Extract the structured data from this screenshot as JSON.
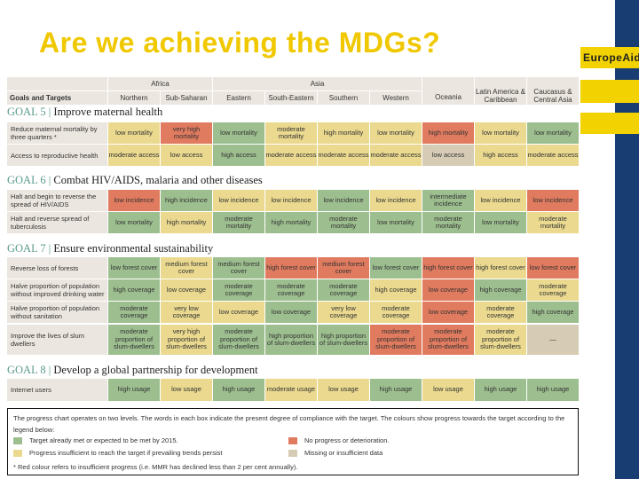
{
  "title": "Are we achieving the MDGs?",
  "brand": "EuropeAid",
  "colors": {
    "green": "#9dbf8f",
    "yellow": "#ead98f",
    "red": "#e07b5f",
    "gray": "#d6ccb5"
  },
  "header": {
    "goals_label": "Goals and Targets",
    "groups": [
      {
        "label": "Africa",
        "span": 2
      },
      {
        "label": "Asia",
        "span": 4
      }
    ],
    "regions": [
      "Northern",
      "Sub-Saharan",
      "Eastern",
      "South-Eastern",
      "Southern",
      "Western",
      "Oceania",
      "Latin America & Caribbean",
      "Caucasus & Central Asia"
    ]
  },
  "goals": [
    {
      "number": "GOAL 5",
      "title": "Improve maternal health",
      "rows": [
        {
          "label": "Reduce maternal mortality by three quarters *",
          "cells": [
            [
              "low mortality",
              "yellow"
            ],
            [
              "very high mortality",
              "red"
            ],
            [
              "low mortality",
              "green"
            ],
            [
              "moderate mortality",
              "yellow"
            ],
            [
              "high mortality",
              "yellow"
            ],
            [
              "low mortality",
              "yellow"
            ],
            [
              "high mortality",
              "red"
            ],
            [
              "low mortality",
              "yellow"
            ],
            [
              "low mortality",
              "green"
            ]
          ]
        },
        {
          "label": "Access to reproductive health",
          "cells": [
            [
              "moderate access",
              "yellow"
            ],
            [
              "low access",
              "yellow"
            ],
            [
              "high access",
              "green"
            ],
            [
              "moderate access",
              "yellow"
            ],
            [
              "moderate access",
              "yellow"
            ],
            [
              "moderate access",
              "yellow"
            ],
            [
              "low access",
              "gray"
            ],
            [
              "high access",
              "yellow"
            ],
            [
              "moderate access",
              "yellow"
            ]
          ]
        }
      ]
    },
    {
      "number": "GOAL 6",
      "title": "Combat HIV/AIDS, malaria and other diseases",
      "rows": [
        {
          "label": "Halt and begin to reverse the spread of HIV/AIDS",
          "cells": [
            [
              "low incidence",
              "red"
            ],
            [
              "high incidence",
              "green"
            ],
            [
              "low incidence",
              "yellow"
            ],
            [
              "low incidence",
              "yellow"
            ],
            [
              "low incidence",
              "green"
            ],
            [
              "low incidence",
              "yellow"
            ],
            [
              "intermediate incidence",
              "green"
            ],
            [
              "low incidence",
              "yellow"
            ],
            [
              "low incidence",
              "red"
            ]
          ]
        },
        {
          "label": "Halt and reverse spread of tuberculosis",
          "cells": [
            [
              "low mortality",
              "green"
            ],
            [
              "high mortality",
              "yellow"
            ],
            [
              "moderate mortality",
              "green"
            ],
            [
              "high mortality",
              "green"
            ],
            [
              "moderate mortality",
              "green"
            ],
            [
              "low mortality",
              "green"
            ],
            [
              "moderate mortality",
              "green"
            ],
            [
              "low mortality",
              "green"
            ],
            [
              "moderate mortality",
              "yellow"
            ]
          ]
        }
      ]
    },
    {
      "number": "GOAL 7",
      "title": "Ensure environmental sustainability",
      "rows": [
        {
          "label": "Reverse loss of forests",
          "cells": [
            [
              "low forest cover",
              "green"
            ],
            [
              "medium forest cover",
              "yellow"
            ],
            [
              "medium forest cover",
              "green"
            ],
            [
              "high forest cover",
              "red"
            ],
            [
              "medium forest cover",
              "red"
            ],
            [
              "low forest cover",
              "green"
            ],
            [
              "high forest cover",
              "red"
            ],
            [
              "high forest cover",
              "yellow"
            ],
            [
              "low forest cover",
              "red"
            ]
          ]
        },
        {
          "label": "Halve proportion of population without improved drinking water",
          "cells": [
            [
              "high coverage",
              "green"
            ],
            [
              "low coverage",
              "yellow"
            ],
            [
              "moderate coverage",
              "green"
            ],
            [
              "moderate coverage",
              "green"
            ],
            [
              "moderate coverage",
              "green"
            ],
            [
              "high coverage",
              "yellow"
            ],
            [
              "low coverage",
              "red"
            ],
            [
              "high coverage",
              "green"
            ],
            [
              "moderate coverage",
              "yellow"
            ]
          ]
        },
        {
          "label": "Halve proportion of population without sanitation",
          "cells": [
            [
              "moderate coverage",
              "green"
            ],
            [
              "very low coverage",
              "yellow"
            ],
            [
              "low coverage",
              "yellow"
            ],
            [
              "low coverage",
              "green"
            ],
            [
              "very low coverage",
              "yellow"
            ],
            [
              "moderate coverage",
              "yellow"
            ],
            [
              "low coverage",
              "red"
            ],
            [
              "moderate coverage",
              "yellow"
            ],
            [
              "high coverage",
              "green"
            ]
          ]
        },
        {
          "label": "Improve the lives of slum dwellers",
          "cells": [
            [
              "moderate proportion of slum-dwellers",
              "green"
            ],
            [
              "very high proportion of slum-dwellers",
              "yellow"
            ],
            [
              "moderate proportion of slum-dwellers",
              "green"
            ],
            [
              "high proportion of slum-dwellers",
              "green"
            ],
            [
              "high proportion of slum-dwellers",
              "green"
            ],
            [
              "moderate proportion of slum-dwellers",
              "red"
            ],
            [
              "moderate proportion of slum-dwellers",
              "red"
            ],
            [
              "moderate proportion of slum-dwellers",
              "yellow"
            ],
            [
              "—",
              "gray"
            ]
          ]
        }
      ]
    },
    {
      "number": "GOAL 8",
      "title": "Develop a global partnership for development",
      "rows": [
        {
          "label": "Internet users",
          "cells": [
            [
              "high usage",
              "green"
            ],
            [
              "low usage",
              "yellow"
            ],
            [
              "high usage",
              "green"
            ],
            [
              "moderate usage",
              "yellow"
            ],
            [
              "low usage",
              "yellow"
            ],
            [
              "high usage",
              "green"
            ],
            [
              "low usage",
              "yellow"
            ],
            [
              "high usage",
              "green"
            ],
            [
              "high usage",
              "green"
            ]
          ]
        }
      ]
    }
  ],
  "legend": {
    "intro": "The progress chart operates on two levels. The words in each box indicate the present degree of compliance with the target. The colours show progress towards the target according to the legend below:",
    "items": [
      {
        "label": "Target already met or expected to be met by 2015.",
        "color": "green"
      },
      {
        "label": "Progress insufficient to reach the target if prevailing trends persist",
        "color": "yellow"
      },
      {
        "label": "No progress or deterioration.",
        "color": "red"
      },
      {
        "label": "Missing or insufficient data",
        "color": "gray"
      }
    ],
    "footnote": "* Red colour refers to insufficient progress (i.e. MMR has declined less than 2 per cent annually)."
  }
}
